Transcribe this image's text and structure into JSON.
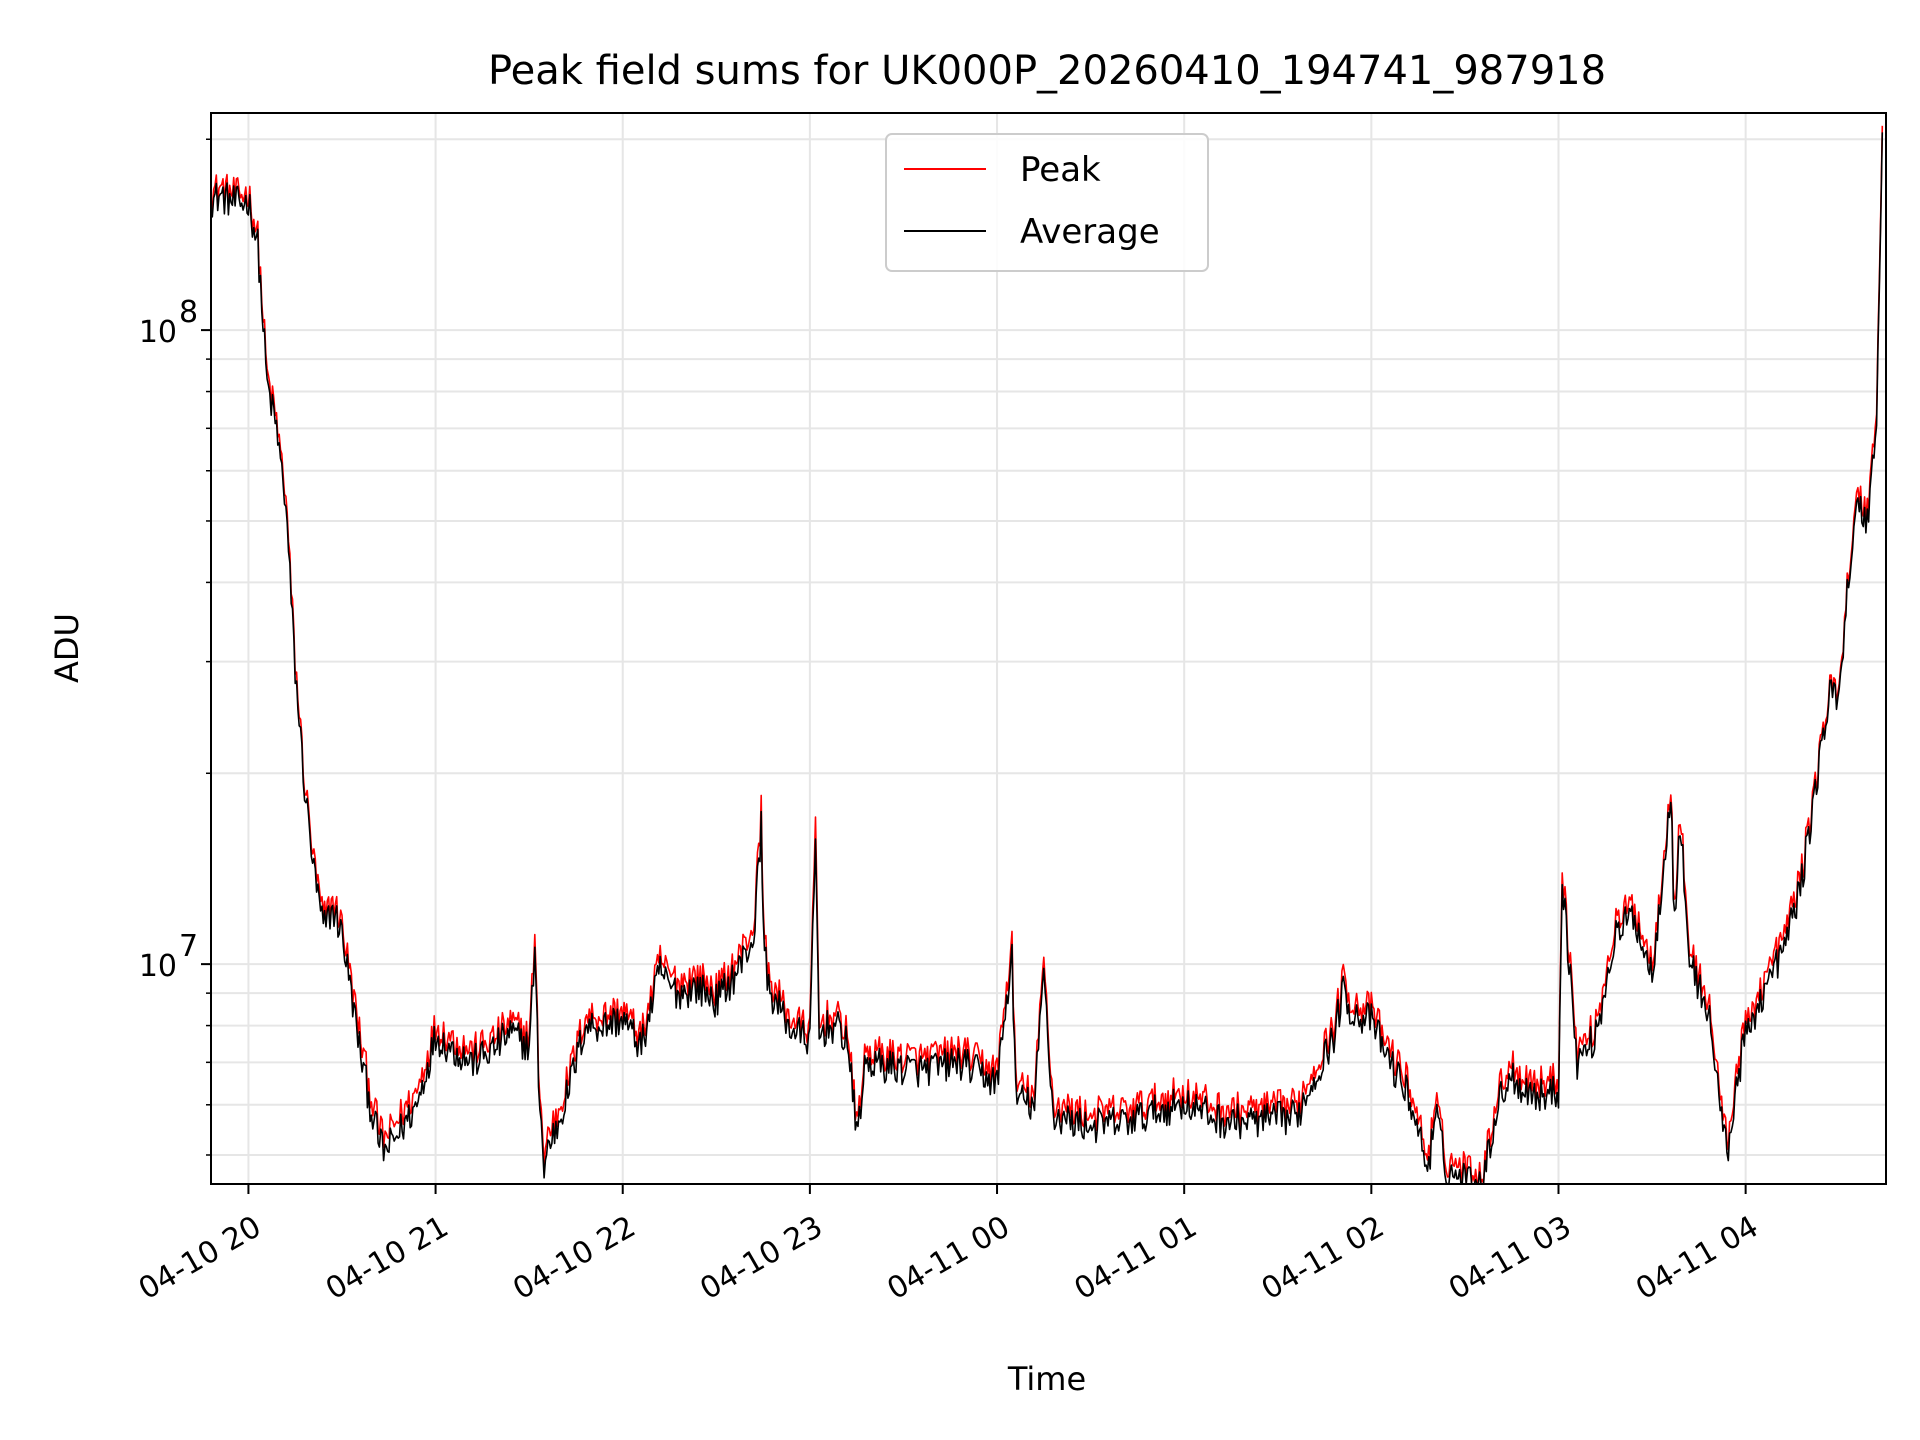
{
  "chart_data": {
    "type": "line",
    "title": "Peak field sums for UK000P_20260410_194741_987918",
    "xlabel": "Time",
    "ylabel": "ADU",
    "yscale": "log",
    "ylim": [
      4500000,
      220000000
    ],
    "xlim_hours": [
      19.8,
      28.75
    ],
    "grid": true,
    "legend_position": "top-center",
    "x_ticks": [
      {
        "hour": 20,
        "label": "04-10 20"
      },
      {
        "hour": 21,
        "label": "04-10 21"
      },
      {
        "hour": 22,
        "label": "04-10 22"
      },
      {
        "hour": 23,
        "label": "04-10 23"
      },
      {
        "hour": 24,
        "label": "04-11 00"
      },
      {
        "hour": 25,
        "label": "04-11 01"
      },
      {
        "hour": 26,
        "label": "04-11 02"
      },
      {
        "hour": 27,
        "label": "04-11 03"
      },
      {
        "hour": 28,
        "label": "04-11 04"
      }
    ],
    "y_ticks": [
      {
        "value": 10000000,
        "base": "10",
        "exp": "7"
      },
      {
        "value": 100000000,
        "base": "10",
        "exp": "8"
      }
    ],
    "series": [
      {
        "name": "Peak",
        "color": "#ff0000",
        "offset_factor": 1.05,
        "x_hours": [
          19.8,
          19.85,
          19.9,
          19.95,
          20.0,
          20.05,
          20.1,
          20.15,
          20.2,
          20.25,
          20.3,
          20.35,
          20.4,
          20.45,
          20.5,
          20.6,
          20.65,
          20.7,
          20.73,
          20.8,
          20.9,
          21.0,
          21.1,
          21.2,
          21.3,
          21.4,
          21.5,
          21.53,
          21.55,
          21.58,
          21.6,
          21.65,
          21.7,
          21.8,
          21.9,
          22.0,
          22.1,
          22.2,
          22.25,
          22.3,
          22.4,
          22.5,
          22.6,
          22.7,
          22.74,
          22.75,
          22.78,
          22.9,
          23.0,
          23.03,
          23.05,
          23.1,
          23.15,
          23.2,
          23.25,
          23.3,
          23.4,
          23.6,
          23.8,
          24.0,
          24.08,
          24.1,
          24.2,
          24.25,
          24.3,
          24.5,
          24.7,
          25.0,
          25.2,
          25.4,
          25.6,
          25.8,
          25.85,
          25.9,
          26.0,
          26.1,
          26.2,
          26.3,
          26.35,
          26.4,
          26.5,
          26.6,
          26.65,
          26.7,
          26.75,
          26.8,
          26.9,
          27.0,
          27.02,
          27.1,
          27.2,
          27.3,
          27.4,
          27.5,
          27.6,
          27.62,
          27.65,
          27.7,
          27.8,
          27.9,
          27.95,
          28.0,
          28.1,
          28.2,
          28.3,
          28.4,
          28.45,
          28.5,
          28.55,
          28.6,
          28.65,
          28.7,
          28.73
        ],
        "y_values": [
          165000000,
          168000000,
          165000000,
          163000000,
          165000000,
          140000000,
          85000000,
          72000000,
          55000000,
          30000000,
          19500000,
          14500000,
          11800000,
          12600000,
          11600000,
          7600000,
          6300000,
          5500000,
          5300000,
          5700000,
          6300000,
          8000000,
          7600000,
          7300000,
          7600000,
          8100000,
          7700000,
          11000000,
          7000000,
          4900000,
          5400000,
          5800000,
          6500000,
          8300000,
          8300000,
          8500000,
          7700000,
          10200000,
          9600000,
          9400000,
          9600000,
          9100000,
          10000000,
          11500000,
          17500000,
          12000000,
          9500000,
          8200000,
          7900000,
          16800000,
          8000000,
          8300000,
          8200000,
          7900000,
          5600000,
          7300000,
          7200000,
          7100000,
          7300000,
          6800000,
          10800000,
          6500000,
          6200000,
          10200000,
          6000000,
          5800000,
          5900000,
          6300000,
          5900000,
          5900000,
          6000000,
          8000000,
          9500000,
          8700000,
          8500000,
          7300000,
          6500000,
          5000000,
          6000000,
          4900000,
          4800000,
          4700000,
          5800000,
          6600000,
          7000000,
          6700000,
          6500000,
          6600000,
          14400000,
          7300000,
          8000000,
          11500000,
          12500000,
          10000000,
          19000000,
          12000000,
          17500000,
          10500000,
          8800000,
          5200000,
          6700000,
          8000000,
          9500000,
          11000000,
          14000000,
          22000000,
          27000000,
          27500000,
          42000000,
          55000000,
          52000000,
          75000000,
          210000000
        ]
      },
      {
        "name": "Average",
        "color": "#000000",
        "offset_factor": 1.0,
        "x_hours": [
          19.8,
          19.85,
          19.9,
          19.95,
          20.0,
          20.05,
          20.1,
          20.15,
          20.2,
          20.25,
          20.3,
          20.35,
          20.4,
          20.45,
          20.5,
          20.6,
          20.65,
          20.7,
          20.73,
          20.8,
          20.9,
          21.0,
          21.1,
          21.2,
          21.3,
          21.4,
          21.5,
          21.53,
          21.55,
          21.58,
          21.6,
          21.65,
          21.7,
          21.8,
          21.9,
          22.0,
          22.1,
          22.2,
          22.25,
          22.3,
          22.4,
          22.5,
          22.6,
          22.7,
          22.74,
          22.75,
          22.78,
          22.9,
          23.0,
          23.03,
          23.05,
          23.1,
          23.15,
          23.2,
          23.25,
          23.3,
          23.4,
          23.6,
          23.8,
          24.0,
          24.08,
          24.1,
          24.2,
          24.25,
          24.3,
          24.5,
          24.7,
          25.0,
          25.2,
          25.4,
          25.6,
          25.8,
          25.85,
          25.9,
          26.0,
          26.1,
          26.2,
          26.3,
          26.35,
          26.4,
          26.5,
          26.6,
          26.65,
          26.7,
          26.75,
          26.8,
          26.9,
          27.0,
          27.02,
          27.1,
          27.2,
          27.3,
          27.4,
          27.5,
          27.6,
          27.62,
          27.65,
          27.7,
          27.8,
          27.9,
          27.95,
          28.0,
          28.1,
          28.2,
          28.3,
          28.4,
          28.45,
          28.5,
          28.55,
          28.6,
          28.65,
          28.7,
          28.73
        ],
        "y_values": [
          160000000,
          163000000,
          160000000,
          158000000,
          160000000,
          136000000,
          82000000,
          70000000,
          53000000,
          29000000,
          19000000,
          14000000,
          11400000,
          12200000,
          11200000,
          7200000,
          6000000,
          5250000,
          5050000,
          5400000,
          6000000,
          7700000,
          7300000,
          7000000,
          7300000,
          7800000,
          7400000,
          10500000,
          6700000,
          4700000,
          5150000,
          5550000,
          6200000,
          8000000,
          8000000,
          8200000,
          7400000,
          9800000,
          9200000,
          9000000,
          9200000,
          8750000,
          9600000,
          11000000,
          16500000,
          11500000,
          9100000,
          7900000,
          7600000,
          15500000,
          7700000,
          8000000,
          7900000,
          7600000,
          5400000,
          7000000,
          6900000,
          6800000,
          7000000,
          6500000,
          10300000,
          6200000,
          5950000,
          9800000,
          5750000,
          5550000,
          5650000,
          6050000,
          5650000,
          5650000,
          5750000,
          7700000,
          9100000,
          8350000,
          8150000,
          7000000,
          6200000,
          4800000,
          5750000,
          4700000,
          4600000,
          4550000,
          5550000,
          6300000,
          6700000,
          6400000,
          6200000,
          6300000,
          13800000,
          7000000,
          7700000,
          11000000,
          12000000,
          9600000,
          18500000,
          11500000,
          16800000,
          10100000,
          8450000,
          5000000,
          6400000,
          7700000,
          9100000,
          10500000,
          13500000,
          21500000,
          26500000,
          27000000,
          41000000,
          53000000,
          50000000,
          72000000,
          205000000
        ]
      }
    ]
  }
}
